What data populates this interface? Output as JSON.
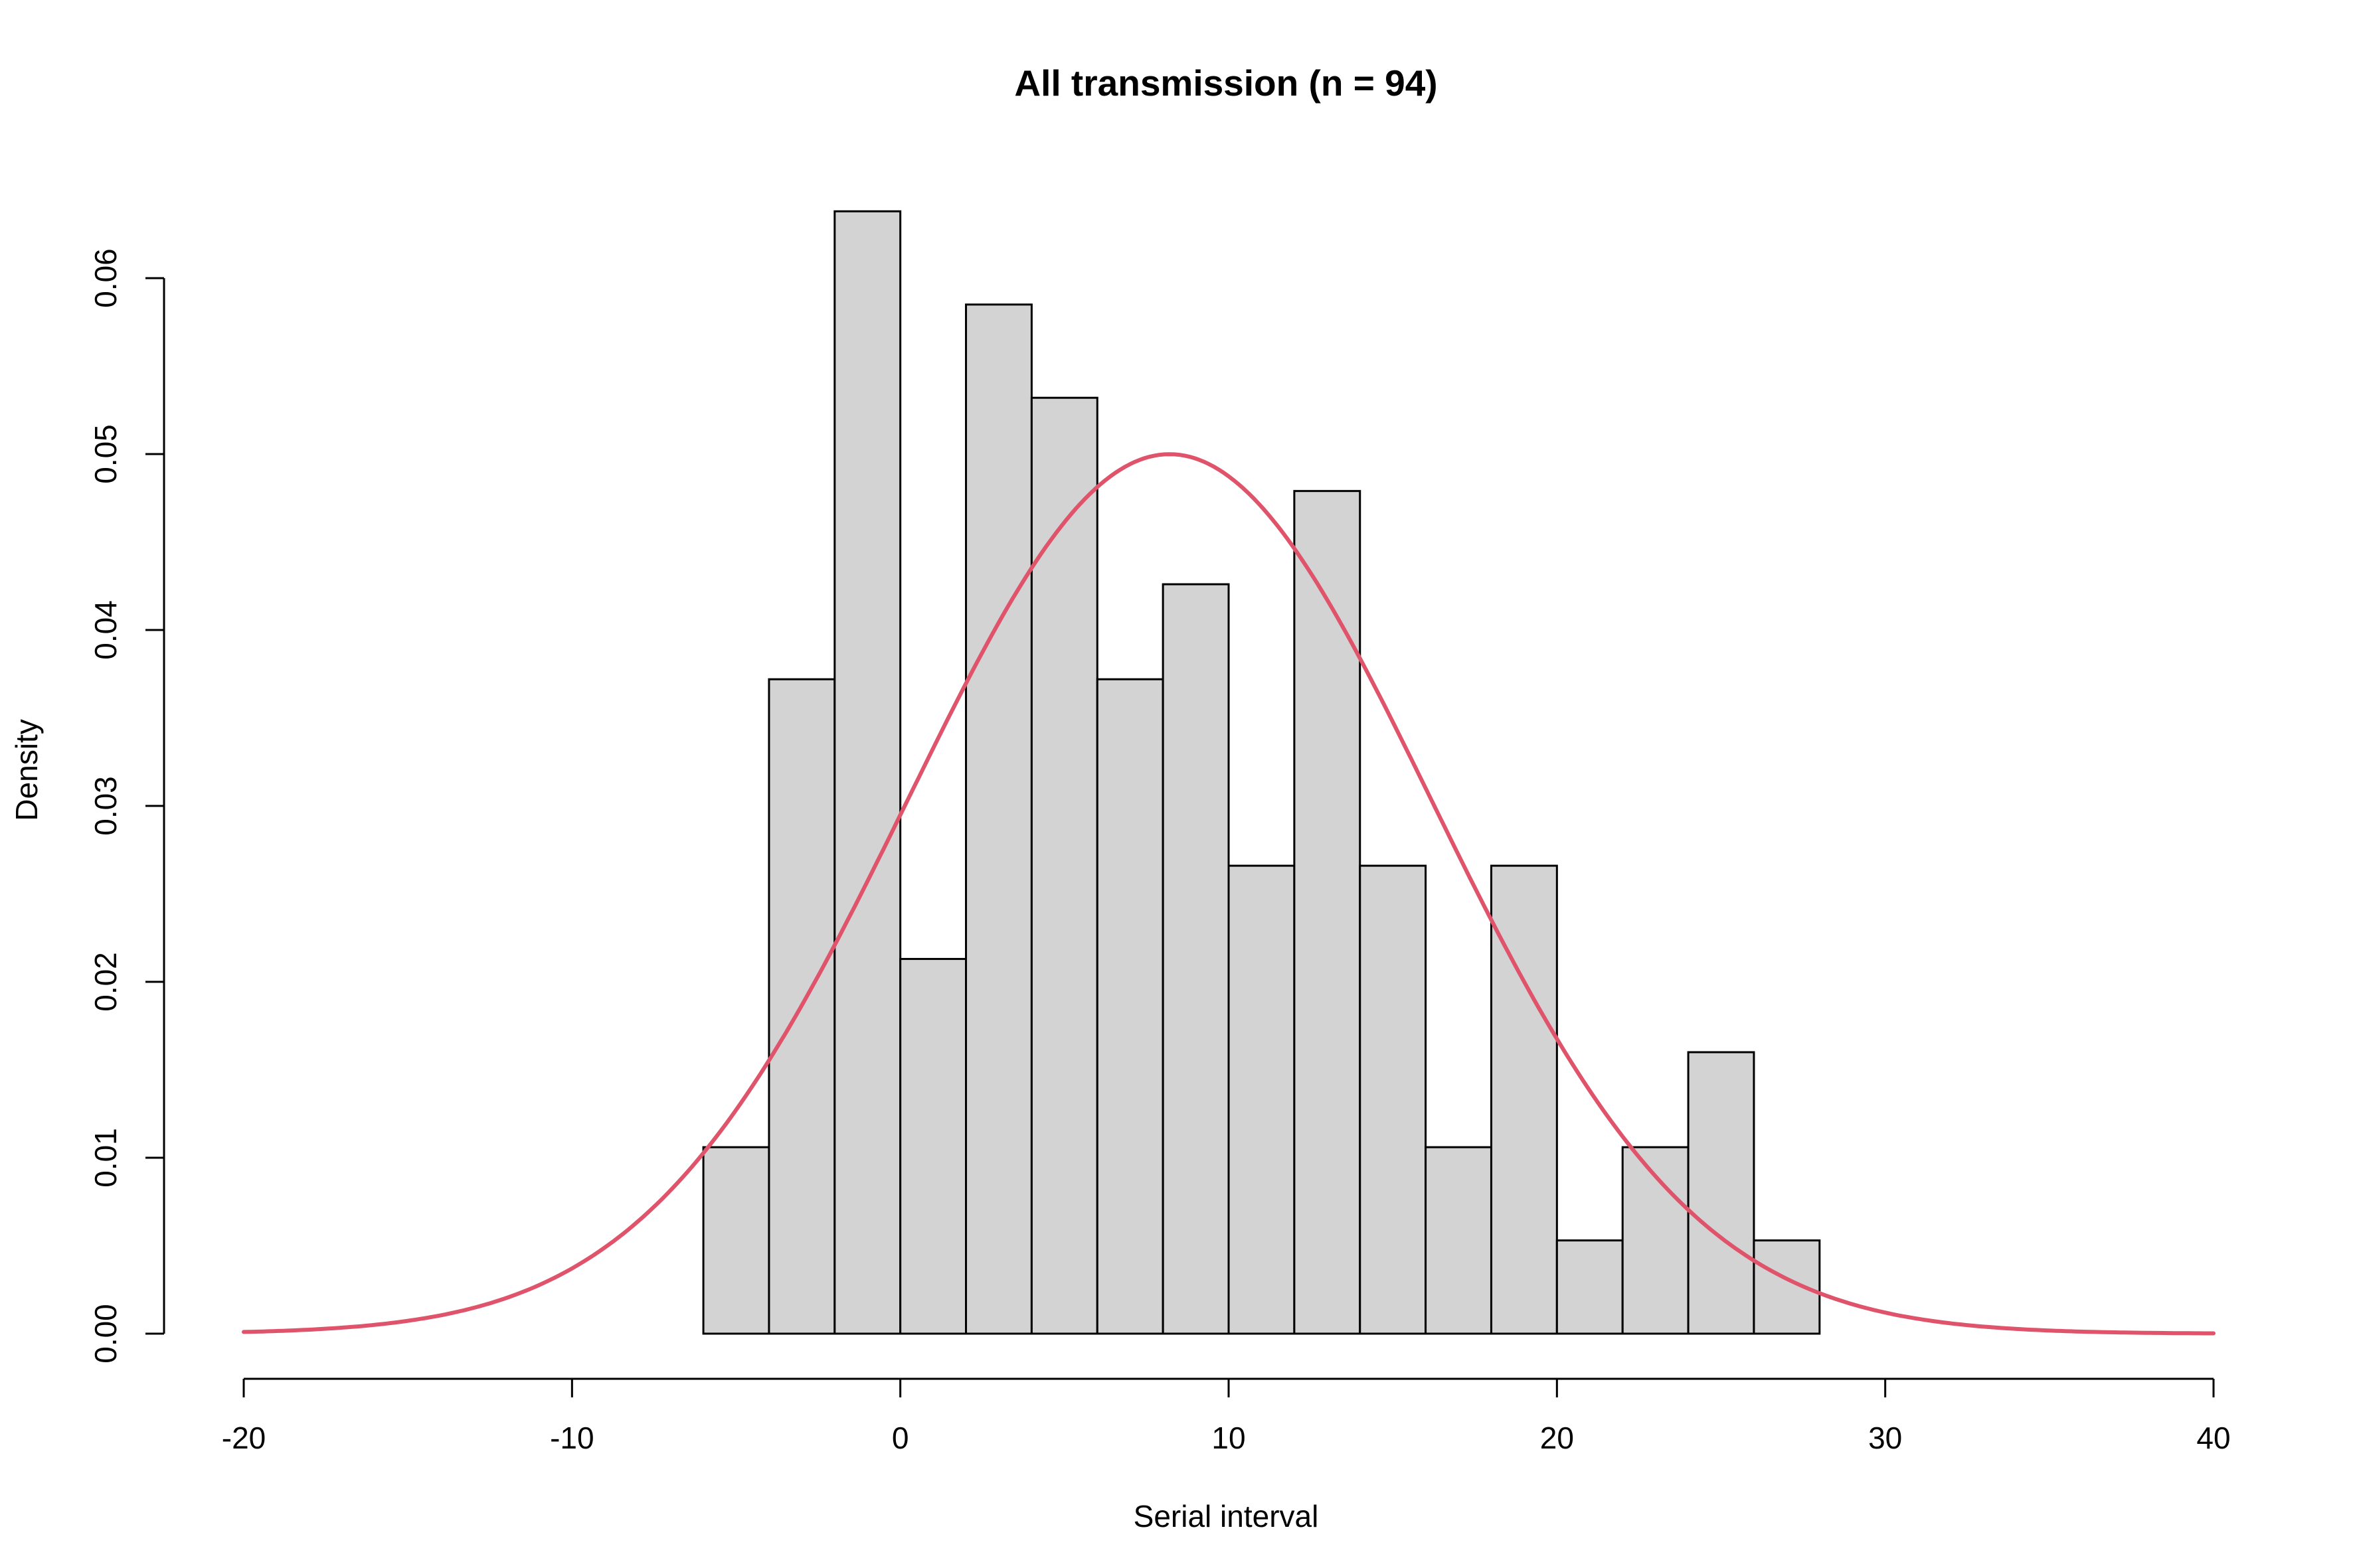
{
  "chart_data": {
    "type": "bar",
    "title": "All transmission (n = 94)",
    "xlabel": "Serial interval",
    "ylabel": "Density",
    "xlim": [
      -20,
      40
    ],
    "ylim": [
      0,
      0.06
    ],
    "x_ticks": [
      "-20",
      "-10",
      "0",
      "10",
      "20",
      "30",
      "40"
    ],
    "y_ticks": [
      "0.00",
      "0.01",
      "0.02",
      "0.03",
      "0.04",
      "0.05",
      "0.06"
    ],
    "bin_width": 2,
    "bins": [
      {
        "start": -6,
        "end": -4,
        "density": 0.0106
      },
      {
        "start": -4,
        "end": -2,
        "density": 0.0372
      },
      {
        "start": -2,
        "end": 0,
        "density": 0.0638
      },
      {
        "start": 0,
        "end": 2,
        "density": 0.0213
      },
      {
        "start": 2,
        "end": 4,
        "density": 0.0585
      },
      {
        "start": 4,
        "end": 6,
        "density": 0.0532
      },
      {
        "start": 6,
        "end": 8,
        "density": 0.0372
      },
      {
        "start": 8,
        "end": 10,
        "density": 0.0426
      },
      {
        "start": 10,
        "end": 12,
        "density": 0.0266
      },
      {
        "start": 12,
        "end": 14,
        "density": 0.0479
      },
      {
        "start": 14,
        "end": 16,
        "density": 0.0266
      },
      {
        "start": 16,
        "end": 18,
        "density": 0.0106
      },
      {
        "start": 18,
        "end": 20,
        "density": 0.0266
      },
      {
        "start": 20,
        "end": 22,
        "density": 0.0053
      },
      {
        "start": 22,
        "end": 24,
        "density": 0.0106
      },
      {
        "start": 24,
        "end": 26,
        "density": 0.016
      },
      {
        "start": 26,
        "end": 28,
        "density": 0.0053
      }
    ],
    "curve": {
      "type": "normal",
      "mean": 8.2,
      "sd": 7.98,
      "x_range": [
        -20,
        40
      ]
    },
    "grid": false,
    "legend": "none",
    "colors": {
      "bar_fill": "#d3d3d3",
      "bar_stroke": "#000000",
      "curve": "#df536b",
      "axis": "#000000"
    }
  }
}
